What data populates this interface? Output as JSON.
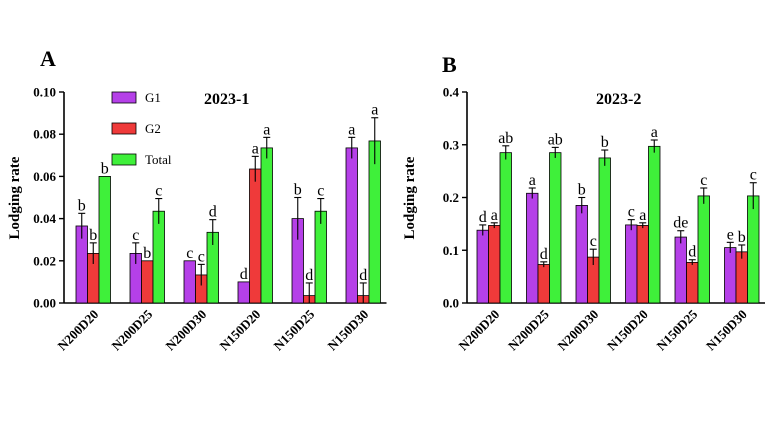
{
  "colors": {
    "G1": "#b540e8",
    "G2": "#ef3a3a",
    "Total": "#3ff03a"
  },
  "chart_data": [
    {
      "type": "bar",
      "panel_label": "A",
      "title": "2023-1",
      "xlabel": "",
      "ylabel": "Lodging rate",
      "ylim": [
        0,
        0.1
      ],
      "yticks": [
        "0.00",
        "0.02",
        "0.04",
        "0.06",
        "0.08",
        "0.10"
      ],
      "categories": [
        "N200D20",
        "N200D25",
        "N200D30",
        "N150D20",
        "N150D25",
        "N150D30"
      ],
      "legend": {
        "placement": "top-left",
        "entries": [
          "G1",
          "G2",
          "Total"
        ]
      },
      "series": [
        {
          "name": "G1",
          "values": [
            0.0365,
            0.0235,
            0.02,
            0.01,
            0.04,
            0.0735
          ],
          "errors": [
            0.006,
            0.005,
            0,
            0,
            0.01,
            0.005
          ],
          "letters": [
            "b",
            "c",
            "c",
            "d",
            "b",
            "a"
          ]
        },
        {
          "name": "G2",
          "values": [
            0.0235,
            0.02,
            0.0133,
            0.0635,
            0.0035,
            0.0035
          ],
          "errors": [
            0.005,
            0,
            0.005,
            0.006,
            0.006,
            0.006
          ],
          "letters": [
            "b",
            "b",
            "c",
            "a",
            "d",
            "d"
          ]
        },
        {
          "name": "Total",
          "values": [
            0.06,
            0.0435,
            0.0335,
            0.0735,
            0.0435,
            0.0768
          ],
          "errors": [
            0,
            0.006,
            0.006,
            0.005,
            0.006,
            0.011
          ],
          "letters": [
            "b",
            "c",
            "d",
            "a",
            "c",
            "a"
          ]
        }
      ]
    },
    {
      "type": "bar",
      "panel_label": "B",
      "title": "2023-2",
      "xlabel": "",
      "ylabel": "Lodging rate",
      "ylim": [
        0,
        0.4
      ],
      "yticks": [
        "0.0",
        "0.1",
        "0.2",
        "0.3",
        "0.4"
      ],
      "categories": [
        "N200D20",
        "N200D25",
        "N200D30",
        "N150D20",
        "N150D25",
        "N150D30"
      ],
      "series": [
        {
          "name": "G1",
          "values": [
            0.138,
            0.208,
            0.185,
            0.148,
            0.125,
            0.105
          ],
          "errors": [
            0.01,
            0.01,
            0.015,
            0.01,
            0.012,
            0.01
          ],
          "letters": [
            "d",
            "a",
            "b",
            "c",
            "de",
            "e"
          ]
        },
        {
          "name": "G2",
          "values": [
            0.147,
            0.073,
            0.087,
            0.147,
            0.077,
            0.097
          ],
          "errors": [
            0.005,
            0.005,
            0.015,
            0.005,
            0.005,
            0.013
          ],
          "letters": [
            "a",
            "d",
            "c",
            "a",
            "d",
            "b"
          ]
        },
        {
          "name": "Total",
          "values": [
            0.285,
            0.285,
            0.275,
            0.297,
            0.203,
            0.203
          ],
          "errors": [
            0.013,
            0.01,
            0.015,
            0.012,
            0.015,
            0.025
          ],
          "letters": [
            "ab",
            "ab",
            "b",
            "a",
            "c",
            "c"
          ]
        }
      ]
    }
  ]
}
